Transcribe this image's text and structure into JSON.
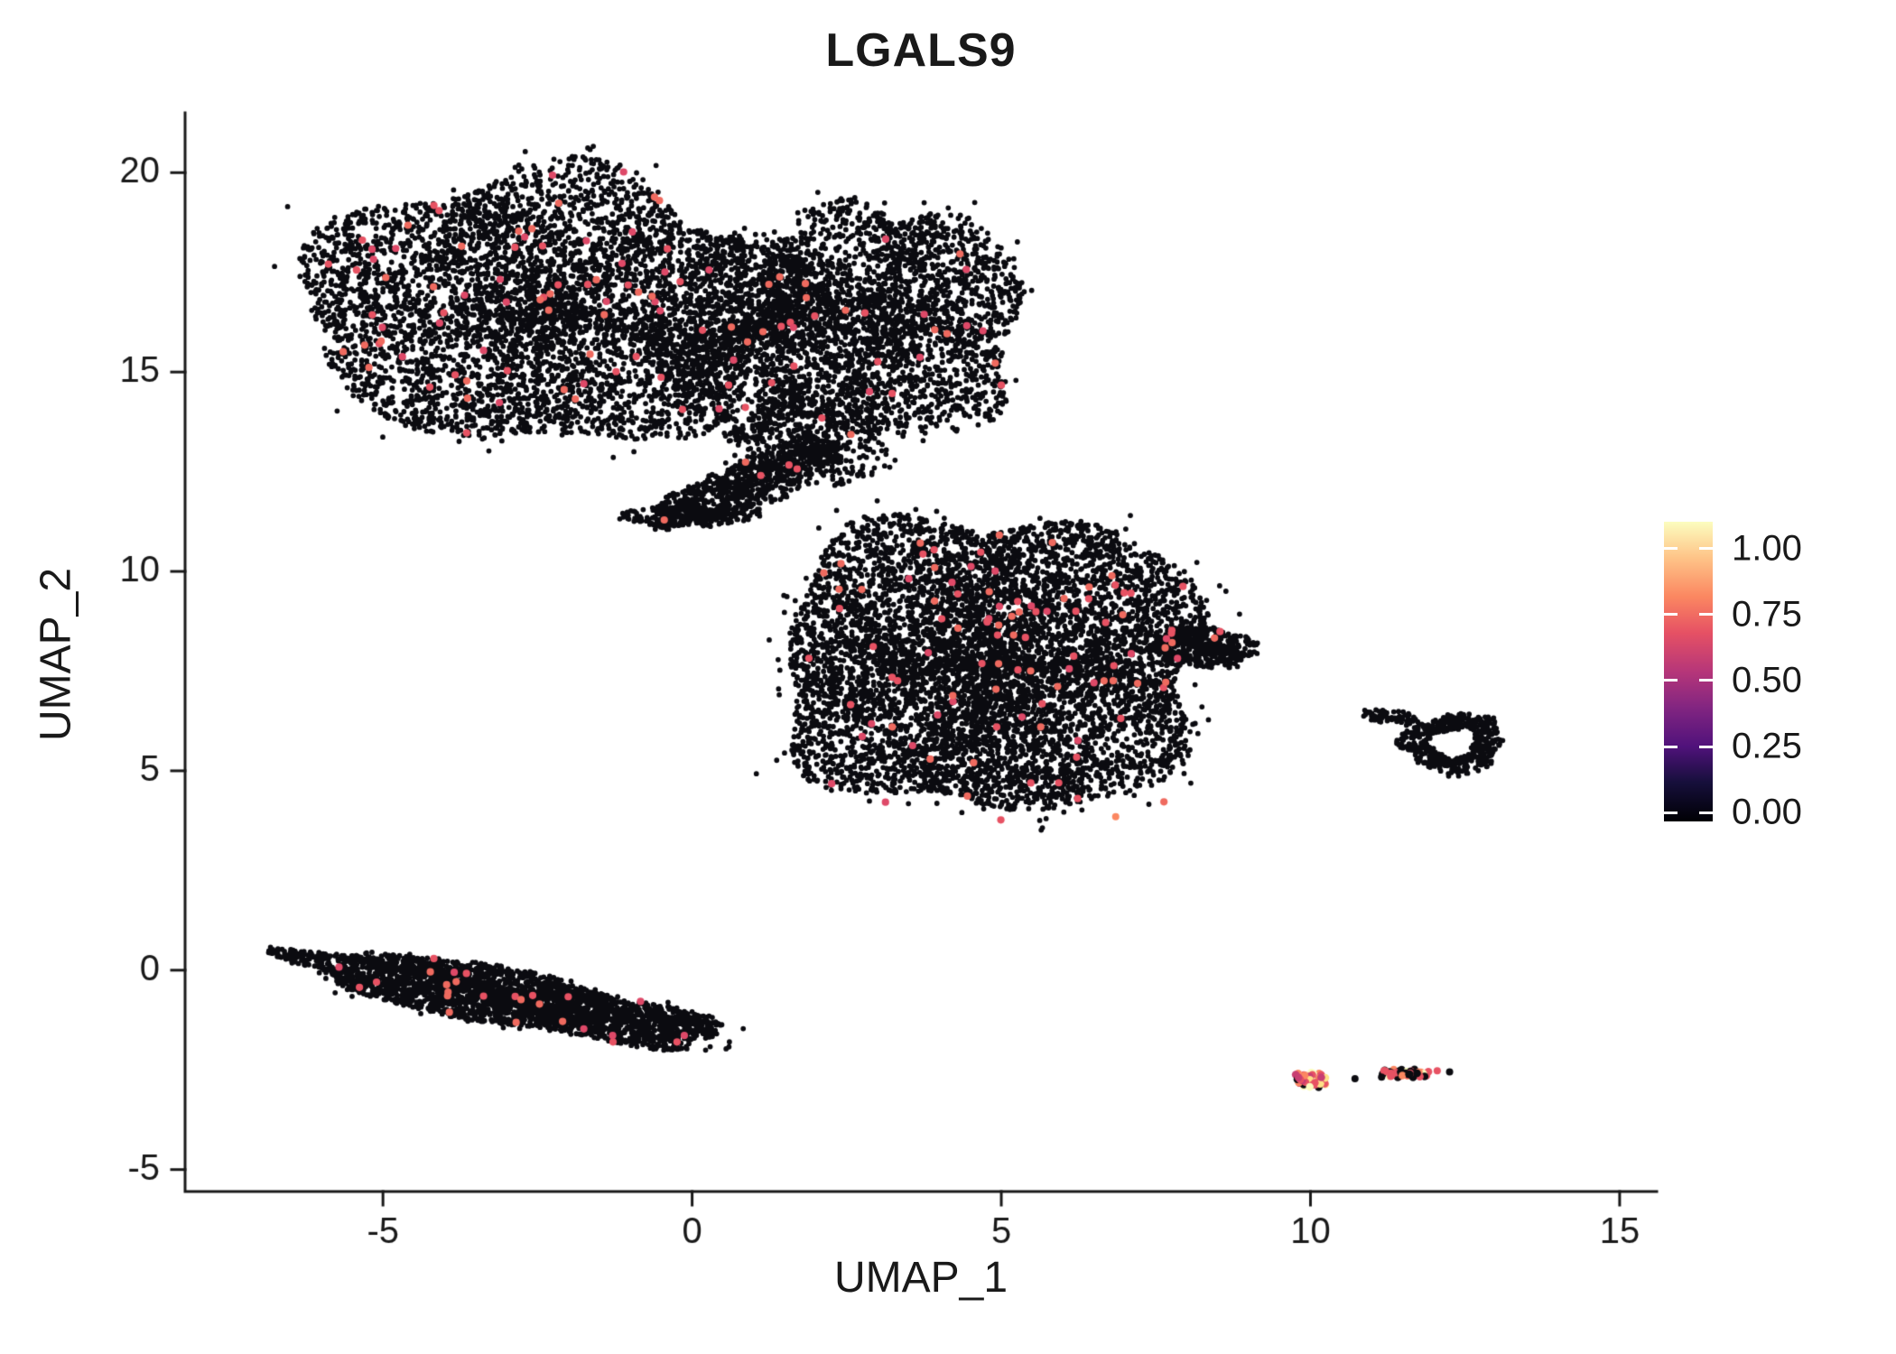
{
  "chart_data": {
    "type": "scatter",
    "title": "LGALS9",
    "xlabel": "UMAP_1",
    "ylabel": "UMAP_2",
    "x_range": [
      -8.2,
      15.6
    ],
    "y_range": [
      -5.55,
      21.5
    ],
    "x_ticks": [
      -5,
      0,
      5,
      10,
      15
    ],
    "y_ticks": [
      -5,
      0,
      5,
      10,
      15,
      20
    ],
    "grid": false,
    "legend_position": "right",
    "point_color": "#0b0b10",
    "highlight_colors": [
      "#e75263",
      "#de4968",
      "#ef6a5f"
    ],
    "colorbar": {
      "tick_labels": [
        "1.00",
        "0.75",
        "0.50",
        "0.25",
        "0.00"
      ],
      "tick_values": [
        1.0,
        0.75,
        0.5,
        0.25,
        0.0
      ],
      "stops": [
        [
          0,
          "#000004"
        ],
        [
          0.13,
          "#160f3b"
        ],
        [
          0.25,
          "#50127b"
        ],
        [
          0.38,
          "#822581"
        ],
        [
          0.5,
          "#b63679"
        ],
        [
          0.63,
          "#e65164"
        ],
        [
          0.75,
          "#fb8761"
        ],
        [
          0.88,
          "#fec488"
        ],
        [
          1,
          "#fcfdbf"
        ]
      ]
    },
    "clusters": [
      {
        "name": "top-left-blob",
        "cx": -2.35,
        "cy": 16.6,
        "rx": 4.0,
        "ry": 3.4,
        "rot": -5,
        "n": 5200,
        "hl": 0.012
      },
      {
        "name": "top-right-lobe",
        "cx": 3.2,
        "cy": 16.3,
        "rx": 2.15,
        "ry": 3.0,
        "rot": 3,
        "n": 2500,
        "hl": 0.007
      },
      {
        "name": "top-mid-connector",
        "cx": 0.9,
        "cy": 15.9,
        "rx": 1.5,
        "ry": 2.5,
        "rot": 0,
        "n": 1000,
        "hl": 0.005
      },
      {
        "name": "top-south-trail",
        "cx": 1.9,
        "cy": 13.3,
        "rx": 1.35,
        "ry": 1.05,
        "rot": -15,
        "n": 450,
        "hl": 0.004
      },
      {
        "name": "bridge-diagonal",
        "cx": 0.9,
        "cy": 12.2,
        "rx": 1.8,
        "ry": 0.55,
        "rot": 33,
        "n": 800,
        "hl": 0.005
      },
      {
        "name": "bridge-arm",
        "cx": 0.0,
        "cy": 11.4,
        "rx": 1.15,
        "ry": 0.26,
        "rot": 3,
        "n": 240,
        "hl": 0.004
      },
      {
        "name": "mid-blob",
        "cx": 4.85,
        "cy": 7.7,
        "rx": 3.5,
        "ry": 3.8,
        "rot": 0,
        "n": 7000,
        "hl": 0.013
      },
      {
        "name": "mid-right-tail",
        "cx": 8.3,
        "cy": 8.1,
        "rx": 0.85,
        "ry": 0.5,
        "rot": -8,
        "n": 430,
        "hl": 0.025
      },
      {
        "name": "right-ring",
        "cx": 12.3,
        "cy": 5.7,
        "rx": 0.82,
        "ry": 0.78,
        "rot": 10,
        "n": 470,
        "hl": 0.0,
        "shape": "ring",
        "ring_hole": 0.45
      },
      {
        "name": "ring-west-arm",
        "cx": 11.3,
        "cy": 6.35,
        "rx": 0.5,
        "ry": 0.18,
        "rot": -12,
        "n": 60,
        "hl": 0.0
      },
      {
        "name": "bottom-left-band",
        "cx": -2.95,
        "cy": -0.7,
        "rx": 3.6,
        "ry": 0.68,
        "rot": -16,
        "n": 3000,
        "hl": 0.011
      },
      {
        "name": "bright-left",
        "cx": 10.0,
        "cy": -2.75,
        "rx": 0.3,
        "ry": 0.22,
        "rot": 0,
        "n": 62,
        "palette": [
          [
            "#fcfdbf",
            2
          ],
          [
            "#fee187",
            2
          ],
          [
            "#fb8761",
            2
          ],
          [
            "#e75263",
            4
          ],
          [
            "#c83e72",
            2
          ],
          [
            "#0b0b10",
            1
          ]
        ]
      },
      {
        "name": "bright-right",
        "cx": 11.55,
        "cy": -2.6,
        "rx": 0.42,
        "ry": 0.13,
        "rot": -4,
        "n": 52,
        "palette": [
          [
            "#0b0b10",
            5
          ],
          [
            "#e75263",
            3
          ],
          [
            "#fb8761",
            1
          ],
          [
            "#fcfdbf",
            1
          ]
        ]
      }
    ],
    "singles": [
      {
        "x": 6.85,
        "y": 3.85,
        "c": "#fb8761"
      },
      {
        "x": 10.72,
        "y": -2.72,
        "c": "#0b0b10"
      },
      {
        "x": 12.05,
        "y": -2.52,
        "c": "#e75263"
      },
      {
        "x": 11.15,
        "y": -2.68,
        "c": "#0b0b10"
      },
      {
        "x": 12.25,
        "y": -2.55,
        "c": "#0b0b10"
      }
    ]
  }
}
